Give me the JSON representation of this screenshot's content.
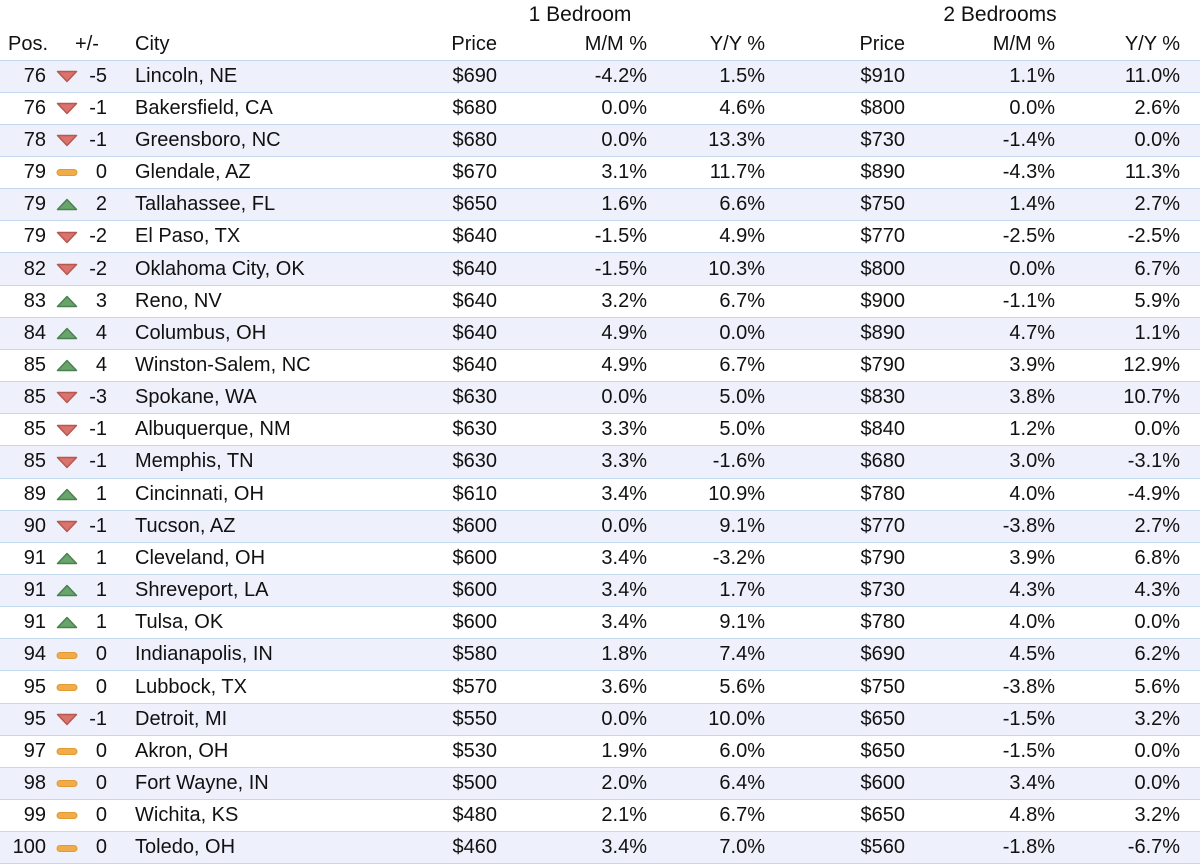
{
  "chart_data": {
    "type": "table",
    "group_headers": [
      "1 Bedroom",
      "2 Bedrooms"
    ],
    "columns": {
      "pos": "Pos.",
      "change": "+/-",
      "city": "City",
      "br1_price": "Price",
      "br1_mm": "M/M %",
      "br1_yy": "Y/Y %",
      "br2_price": "Price",
      "br2_mm": "M/M %",
      "br2_yy": "Y/Y %"
    },
    "rows": [
      {
        "pos": "76",
        "trend": "down",
        "change": "-5",
        "city": "Lincoln, NE",
        "br1_price": "$690",
        "br1_mm": "-4.2%",
        "br1_yy": "1.5%",
        "br2_price": "$910",
        "br2_mm": "1.1%",
        "br2_yy": "11.0%"
      },
      {
        "pos": "76",
        "trend": "down",
        "change": "-1",
        "city": "Bakersfield, CA",
        "br1_price": "$680",
        "br1_mm": "0.0%",
        "br1_yy": "4.6%",
        "br2_price": "$800",
        "br2_mm": "0.0%",
        "br2_yy": "2.6%"
      },
      {
        "pos": "78",
        "trend": "down",
        "change": "-1",
        "city": "Greensboro, NC",
        "br1_price": "$680",
        "br1_mm": "0.0%",
        "br1_yy": "13.3%",
        "br2_price": "$730",
        "br2_mm": "-1.4%",
        "br2_yy": "0.0%"
      },
      {
        "pos": "79",
        "trend": "flat",
        "change": "0",
        "city": "Glendale, AZ",
        "br1_price": "$670",
        "br1_mm": "3.1%",
        "br1_yy": "11.7%",
        "br2_price": "$890",
        "br2_mm": "-4.3%",
        "br2_yy": "11.3%"
      },
      {
        "pos": "79",
        "trend": "up",
        "change": "2",
        "city": "Tallahassee, FL",
        "br1_price": "$650",
        "br1_mm": "1.6%",
        "br1_yy": "6.6%",
        "br2_price": "$750",
        "br2_mm": "1.4%",
        "br2_yy": "2.7%"
      },
      {
        "pos": "79",
        "trend": "down",
        "change": "-2",
        "city": "El Paso, TX",
        "br1_price": "$640",
        "br1_mm": "-1.5%",
        "br1_yy": "4.9%",
        "br2_price": "$770",
        "br2_mm": "-2.5%",
        "br2_yy": "-2.5%"
      },
      {
        "pos": "82",
        "trend": "down",
        "change": "-2",
        "city": "Oklahoma City, OK",
        "br1_price": "$640",
        "br1_mm": "-1.5%",
        "br1_yy": "10.3%",
        "br2_price": "$800",
        "br2_mm": "0.0%",
        "br2_yy": "6.7%"
      },
      {
        "pos": "83",
        "trend": "up",
        "change": "3",
        "city": "Reno, NV",
        "br1_price": "$640",
        "br1_mm": "3.2%",
        "br1_yy": "6.7%",
        "br2_price": "$900",
        "br2_mm": "-1.1%",
        "br2_yy": "5.9%"
      },
      {
        "pos": "84",
        "trend": "up",
        "change": "4",
        "city": "Columbus, OH",
        "br1_price": "$640",
        "br1_mm": "4.9%",
        "br1_yy": "0.0%",
        "br2_price": "$890",
        "br2_mm": "4.7%",
        "br2_yy": "1.1%"
      },
      {
        "pos": "85",
        "trend": "up",
        "change": "4",
        "city": "Winston-Salem, NC",
        "br1_price": "$640",
        "br1_mm": "4.9%",
        "br1_yy": "6.7%",
        "br2_price": "$790",
        "br2_mm": "3.9%",
        "br2_yy": "12.9%"
      },
      {
        "pos": "85",
        "trend": "down",
        "change": "-3",
        "city": "Spokane, WA",
        "br1_price": "$630",
        "br1_mm": "0.0%",
        "br1_yy": "5.0%",
        "br2_price": "$830",
        "br2_mm": "3.8%",
        "br2_yy": "10.7%"
      },
      {
        "pos": "85",
        "trend": "down",
        "change": "-1",
        "city": "Albuquerque, NM",
        "br1_price": "$630",
        "br1_mm": "3.3%",
        "br1_yy": "5.0%",
        "br2_price": "$840",
        "br2_mm": "1.2%",
        "br2_yy": "0.0%"
      },
      {
        "pos": "85",
        "trend": "down",
        "change": "-1",
        "city": "Memphis, TN",
        "br1_price": "$630",
        "br1_mm": "3.3%",
        "br1_yy": "-1.6%",
        "br2_price": "$680",
        "br2_mm": "3.0%",
        "br2_yy": "-3.1%"
      },
      {
        "pos": "89",
        "trend": "up",
        "change": "1",
        "city": "Cincinnati, OH",
        "br1_price": "$610",
        "br1_mm": "3.4%",
        "br1_yy": "10.9%",
        "br2_price": "$780",
        "br2_mm": "4.0%",
        "br2_yy": "-4.9%"
      },
      {
        "pos": "90",
        "trend": "down",
        "change": "-1",
        "city": "Tucson, AZ",
        "br1_price": "$600",
        "br1_mm": "0.0%",
        "br1_yy": "9.1%",
        "br2_price": "$770",
        "br2_mm": "-3.8%",
        "br2_yy": "2.7%"
      },
      {
        "pos": "91",
        "trend": "up",
        "change": "1",
        "city": "Cleveland, OH",
        "br1_price": "$600",
        "br1_mm": "3.4%",
        "br1_yy": "-3.2%",
        "br2_price": "$790",
        "br2_mm": "3.9%",
        "br2_yy": "6.8%"
      },
      {
        "pos": "91",
        "trend": "up",
        "change": "1",
        "city": "Shreveport, LA",
        "br1_price": "$600",
        "br1_mm": "3.4%",
        "br1_yy": "1.7%",
        "br2_price": "$730",
        "br2_mm": "4.3%",
        "br2_yy": "4.3%"
      },
      {
        "pos": "91",
        "trend": "up",
        "change": "1",
        "city": "Tulsa, OK",
        "br1_price": "$600",
        "br1_mm": "3.4%",
        "br1_yy": "9.1%",
        "br2_price": "$780",
        "br2_mm": "4.0%",
        "br2_yy": "0.0%"
      },
      {
        "pos": "94",
        "trend": "flat",
        "change": "0",
        "city": "Indianapolis, IN",
        "br1_price": "$580",
        "br1_mm": "1.8%",
        "br1_yy": "7.4%",
        "br2_price": "$690",
        "br2_mm": "4.5%",
        "br2_yy": "6.2%"
      },
      {
        "pos": "95",
        "trend": "flat",
        "change": "0",
        "city": "Lubbock, TX",
        "br1_price": "$570",
        "br1_mm": "3.6%",
        "br1_yy": "5.6%",
        "br2_price": "$750",
        "br2_mm": "-3.8%",
        "br2_yy": "5.6%"
      },
      {
        "pos": "95",
        "trend": "down",
        "change": "-1",
        "city": "Detroit, MI",
        "br1_price": "$550",
        "br1_mm": "0.0%",
        "br1_yy": "10.0%",
        "br2_price": "$650",
        "br2_mm": "-1.5%",
        "br2_yy": "3.2%"
      },
      {
        "pos": "97",
        "trend": "flat",
        "change": "0",
        "city": "Akron, OH",
        "br1_price": "$530",
        "br1_mm": "1.9%",
        "br1_yy": "6.0%",
        "br2_price": "$650",
        "br2_mm": "-1.5%",
        "br2_yy": "0.0%"
      },
      {
        "pos": "98",
        "trend": "flat",
        "change": "0",
        "city": "Fort Wayne, IN",
        "br1_price": "$500",
        "br1_mm": "2.0%",
        "br1_yy": "6.4%",
        "br2_price": "$600",
        "br2_mm": "3.4%",
        "br2_yy": "0.0%"
      },
      {
        "pos": "99",
        "trend": "flat",
        "change": "0",
        "city": "Wichita, KS",
        "br1_price": "$480",
        "br1_mm": "2.1%",
        "br1_yy": "6.7%",
        "br2_price": "$650",
        "br2_mm": "4.8%",
        "br2_yy": "3.2%"
      },
      {
        "pos": "100",
        "trend": "flat",
        "change": "0",
        "city": "Toledo, OH",
        "br1_price": "$460",
        "br1_mm": "3.4%",
        "br1_yy": "7.0%",
        "br2_price": "$560",
        "br2_mm": "-1.8%",
        "br2_yy": "-6.7%"
      }
    ]
  },
  "colors": {
    "trend_up_fill": "#69A46B",
    "trend_up_stroke": "#4A8150",
    "trend_down_fill": "#D9736C",
    "trend_down_stroke": "#B85750",
    "trend_flat_fill": "#F0AC48",
    "trend_flat_stroke": "#E29A35",
    "row_stripe_bg": "#EEF1FB",
    "row_stripe_border": "#C3D9F0",
    "text": "#111111"
  }
}
